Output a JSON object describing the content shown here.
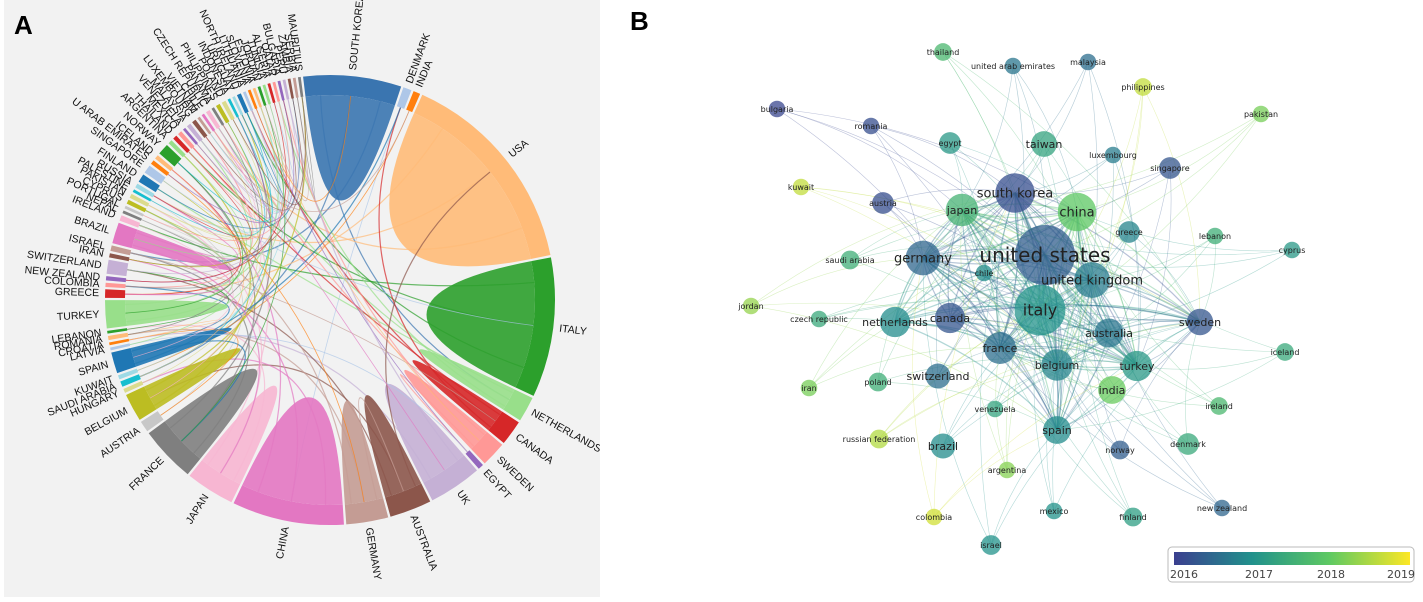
{
  "panel_a": {
    "letter": "A",
    "countries": [
      {
        "name": "SOUTH KOREA",
        "color": "#3a75b0",
        "weight": 70
      },
      {
        "name": "DENMARK",
        "color": "#aec7e8",
        "weight": 6
      },
      {
        "name": "INDIA",
        "color": "#ff7f0e",
        "weight": 5
      },
      {
        "name": "USA",
        "color": "#ffbb78",
        "weight": 150
      },
      {
        "name": "ITALY",
        "color": "#2ca02c",
        "weight": 100
      },
      {
        "name": "NETHERLANDS",
        "color": "#98df8a",
        "weight": 18
      },
      {
        "name": "CANADA",
        "color": "#d62728",
        "weight": 18
      },
      {
        "name": "SWEDEN",
        "color": "#ff9896",
        "weight": 18
      },
      {
        "name": "EGYPT",
        "color": "#9467bd",
        "weight": 4
      },
      {
        "name": "UK",
        "color": "#c5b0d5",
        "weight": 38
      },
      {
        "name": "AUSTRALIA",
        "color": "#8c564b",
        "weight": 30
      },
      {
        "name": "GERMANY",
        "color": "#c49c94",
        "weight": 30
      },
      {
        "name": "CHINA",
        "color": "#e377c2",
        "weight": 80
      },
      {
        "name": "JAPAN",
        "color": "#f7b6d2",
        "weight": 35
      },
      {
        "name": "FRANCE",
        "color": "#7f7f7f",
        "weight": 40
      },
      {
        "name": "AUSTRIA",
        "color": "#c7c7c7",
        "weight": 8
      },
      {
        "name": "BELGIUM",
        "color": "#bcbd22",
        "weight": 20
      },
      {
        "name": "HUNGARY",
        "color": "#dbdb8d",
        "weight": 3
      },
      {
        "name": "SAUDI ARABIA",
        "color": "#17becf",
        "weight": 4
      },
      {
        "name": "KUWAIT",
        "color": "#9edae5",
        "weight": 3
      },
      {
        "name": "SPAIN",
        "color": "#1f77b4",
        "weight": 15
      },
      {
        "name": "LATVIA",
        "color": "#aec7e8",
        "weight": 2
      },
      {
        "name": "CROATIA",
        "color": "#ff7f0e",
        "weight": 2
      },
      {
        "name": "ROMANIA",
        "color": "#ffbb78",
        "weight": 3
      },
      {
        "name": "LEBANON",
        "color": "#2ca02c",
        "weight": 2
      },
      {
        "name": "TURKEY",
        "color": "#98df8a",
        "weight": 20
      },
      {
        "name": "GREECE",
        "color": "#d62728",
        "weight": 6
      },
      {
        "name": "COLOMBIA",
        "color": "#ff9896",
        "weight": 3
      },
      {
        "name": "NEW ZEALAND",
        "color": "#9467bd",
        "weight": 3
      },
      {
        "name": "SWITZERLAND",
        "color": "#c5b0d5",
        "weight": 10
      },
      {
        "name": "IRAN",
        "color": "#8c564b",
        "weight": 3
      },
      {
        "name": "ISRAEL",
        "color": "#c49c94",
        "weight": 4
      },
      {
        "name": "BRAZIL",
        "color": "#e377c2",
        "weight": 15
      },
      {
        "name": "IRELAND",
        "color": "#f7b6d2",
        "weight": 4
      },
      {
        "name": "NEPAL",
        "color": "#7f7f7f",
        "weight": 2
      },
      {
        "name": "PORTUGAL",
        "color": "#c7c7c7",
        "weight": 2
      },
      {
        "name": "CYPRUS",
        "color": "#bcbd22",
        "weight": 3
      },
      {
        "name": "PAKISTAN",
        "color": "#dbdb8d",
        "weight": 3
      },
      {
        "name": "PALESTINE",
        "color": "#17becf",
        "weight": 2
      },
      {
        "name": "RUSSIA",
        "color": "#9edae5",
        "weight": 3
      },
      {
        "name": "FINLAND",
        "color": "#1f77b4",
        "weight": 6
      },
      {
        "name": "SINGAPORE",
        "color": "#aec7e8",
        "weight": 6
      },
      {
        "name": "U ARAB EMIRATES",
        "color": "#ff7f0e",
        "weight": 3
      },
      {
        "name": "ICELAND",
        "color": "#ffbb78",
        "weight": 3
      },
      {
        "name": "NORWAY",
        "color": "#2ca02c",
        "weight": 8
      },
      {
        "name": "ARGENTINA",
        "color": "#98df8a",
        "weight": 3
      },
      {
        "name": "THAILAND",
        "color": "#d62728",
        "weight": 3
      },
      {
        "name": "MEXICO",
        "color": "#ff9896",
        "weight": 3
      },
      {
        "name": "VENEZUELA",
        "color": "#9467bd",
        "weight": 2
      },
      {
        "name": "MALAYSIA",
        "color": "#c5b0d5",
        "weight": 3
      },
      {
        "name": "LUXEMBOURG",
        "color": "#8c564b",
        "weight": 3
      },
      {
        "name": "VIETNAM",
        "color": "#c49c94",
        "weight": 2
      },
      {
        "name": "CHILE",
        "color": "#e377c2",
        "weight": 2
      },
      {
        "name": "CZECH REPUBLIC",
        "color": "#f7b6d2",
        "weight": 3
      },
      {
        "name": "PANAMA",
        "color": "#7f7f7f",
        "weight": 2
      },
      {
        "name": "PHILIPPINES",
        "color": "#bcbd22",
        "weight": 3
      },
      {
        "name": "POLAND",
        "color": "#dbdb8d",
        "weight": 3
      },
      {
        "name": "INDONESIA",
        "color": "#17becf",
        "weight": 2
      },
      {
        "name": "URUGUAY",
        "color": "#9edae5",
        "weight": 2
      },
      {
        "name": "NORTH IRELAND",
        "color": "#1f77b4",
        "weight": 3
      },
      {
        "name": "LITHUANIA",
        "color": "#aec7e8",
        "weight": 2
      },
      {
        "name": "SLOVENIA",
        "color": "#ff7f0e",
        "weight": 2
      },
      {
        "name": "ESTONIA",
        "color": "#ffbb78",
        "weight": 2
      },
      {
        "name": "JORDAN",
        "color": "#2ca02c",
        "weight": 2
      },
      {
        "name": "TUNISIA",
        "color": "#98df8a",
        "weight": 2
      },
      {
        "name": "ALGERIA",
        "color": "#d62728",
        "weight": 2
      },
      {
        "name": "QATAR",
        "color": "#ff9896",
        "weight": 2
      },
      {
        "name": "BULGARIA",
        "color": "#9467bd",
        "weight": 2
      },
      {
        "name": "PERU",
        "color": "#c5b0d5",
        "weight": 2
      },
      {
        "name": "ZAMBIA",
        "color": "#8c564b",
        "weight": 2
      },
      {
        "name": "SERBIA",
        "color": "#c49c94",
        "weight": 2
      },
      {
        "name": "MAURITIUS",
        "color": "#7f7f7f",
        "weight": 2
      }
    ]
  },
  "panel_b": {
    "letter": "B",
    "legend": {
      "ticks": [
        "2016",
        "2017",
        "2018",
        "2019"
      ],
      "colors": [
        "#3b3f8f",
        "#21918c",
        "#5ec962",
        "#fde725"
      ]
    },
    "nodes": [
      {
        "label": "united states",
        "weight": 100,
        "year": 2016.4
      },
      {
        "label": "italy",
        "weight": 70,
        "year": 2017.1
      },
      {
        "label": "south korea",
        "weight": 40,
        "year": 2016.2
      },
      {
        "label": "china",
        "weight": 38,
        "year": 2018.1
      },
      {
        "label": "united kingdom",
        "weight": 32,
        "year": 2016.8
      },
      {
        "label": "germany",
        "weight": 30,
        "year": 2016.5
      },
      {
        "label": "japan",
        "weight": 26,
        "year": 2017.7
      },
      {
        "label": "france",
        "weight": 25,
        "year": 2016.6
      },
      {
        "label": "belgium",
        "weight": 24,
        "year": 2016.9
      },
      {
        "label": "netherlands",
        "weight": 22,
        "year": 2017.0
      },
      {
        "label": "canada",
        "weight": 22,
        "year": 2016.3
      },
      {
        "label": "australia",
        "weight": 20,
        "year": 2016.7
      },
      {
        "label": "turkey",
        "weight": 22,
        "year": 2017.2
      },
      {
        "label": "sweden",
        "weight": 16,
        "year": 2016.3
      },
      {
        "label": "spain",
        "weight": 18,
        "year": 2017.0
      },
      {
        "label": "india",
        "weight": 18,
        "year": 2018.2
      },
      {
        "label": "taiwan",
        "weight": 15,
        "year": 2017.4
      },
      {
        "label": "brazil",
        "weight": 14,
        "year": 2017.0
      },
      {
        "label": "switzerland",
        "weight": 14,
        "year": 2016.6
      },
      {
        "label": "austria",
        "weight": 10,
        "year": 2016.2
      },
      {
        "label": "greece",
        "weight": 10,
        "year": 2016.9
      },
      {
        "label": "egypt",
        "weight": 10,
        "year": 2017.2
      },
      {
        "label": "singapore",
        "weight": 10,
        "year": 2016.3
      },
      {
        "label": "denmark",
        "weight": 10,
        "year": 2017.5
      },
      {
        "label": "saudi arabia",
        "weight": 7,
        "year": 2017.6
      },
      {
        "label": "poland",
        "weight": 7,
        "year": 2017.6
      },
      {
        "label": "norway",
        "weight": 7,
        "year": 2016.4
      },
      {
        "label": "finland",
        "weight": 7,
        "year": 2017.3
      },
      {
        "label": "israel",
        "weight": 8,
        "year": 2017.1
      },
      {
        "label": "russian federation",
        "weight": 7,
        "year": 2018.7
      },
      {
        "label": "ireland",
        "weight": 6,
        "year": 2017.8
      },
      {
        "label": "iceland",
        "weight": 6,
        "year": 2017.5
      },
      {
        "label": "czech republic",
        "weight": 5,
        "year": 2017.5
      },
      {
        "label": "iran",
        "weight": 5,
        "year": 2018.3
      },
      {
        "label": "jordan",
        "weight": 5,
        "year": 2018.5
      },
      {
        "label": "kuwait",
        "weight": 5,
        "year": 2018.8
      },
      {
        "label": "bulgaria",
        "weight": 5,
        "year": 2016.1
      },
      {
        "label": "romania",
        "weight": 5,
        "year": 2016.2
      },
      {
        "label": "thailand",
        "weight": 6,
        "year": 2017.8
      },
      {
        "label": "united arab emirates",
        "weight": 5,
        "year": 2016.7
      },
      {
        "label": "malaysia",
        "weight": 5,
        "year": 2016.6
      },
      {
        "label": "philippines",
        "weight": 6,
        "year": 2018.8
      },
      {
        "label": "pakistan",
        "weight": 5,
        "year": 2018.3
      },
      {
        "label": "luxembourg",
        "weight": 5,
        "year": 2016.8
      },
      {
        "label": "lebanon",
        "weight": 5,
        "year": 2017.6
      },
      {
        "label": "cyprus",
        "weight": 5,
        "year": 2017.2
      },
      {
        "label": "chile",
        "weight": 5,
        "year": 2017.0
      },
      {
        "label": "venezuela",
        "weight": 5,
        "year": 2017.4
      },
      {
        "label": "argentina",
        "weight": 5,
        "year": 2018.4
      },
      {
        "label": "colombia",
        "weight": 5,
        "year": 2018.9
      },
      {
        "label": "mexico",
        "weight": 5,
        "year": 2017.1
      },
      {
        "label": "new zealand",
        "weight": 5,
        "year": 2016.5
      }
    ]
  }
}
